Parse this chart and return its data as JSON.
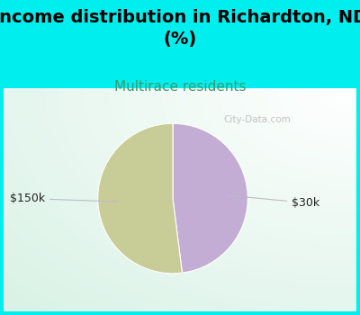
{
  "title": "Income distribution in Richardton, ND\n(%)",
  "subtitle": "Multirace residents",
  "slices": [
    {
      "label": "$30k",
      "value": 48,
      "color": "#c4add4"
    },
    {
      "label": "$150k",
      "value": 52,
      "color": "#c8cc96"
    }
  ],
  "background_color": "#00EEEE",
  "title_fontsize": 14,
  "title_fontweight": "bold",
  "subtitle_fontsize": 11,
  "subtitle_color": "#3a9a6e",
  "watermark": "City-Data.com",
  "watermark_color": "#aaaaaa",
  "label_fontsize": 9,
  "label_color": "#222222",
  "line_color": "#bbbbcc",
  "startangle": 90
}
